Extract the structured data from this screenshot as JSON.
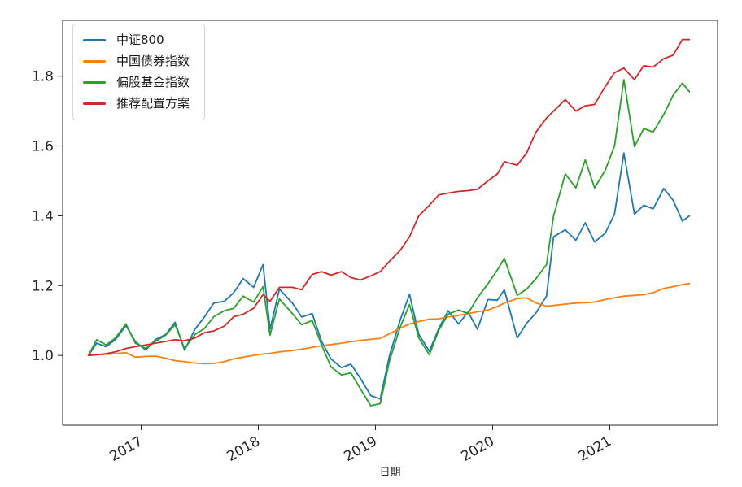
{
  "figure": {
    "background": "#ffffff"
  },
  "chart_data": {
    "type": "line",
    "title": "",
    "xlabel": "日期",
    "ylabel": "",
    "grid": false,
    "legend_position": "upper-left",
    "axis_color": "#262626",
    "tick_color": "#262626",
    "xlim": [
      2016.33,
      2021.92
    ],
    "ylim": [
      0.8,
      1.96
    ],
    "x_tick_values": [
      2017,
      2018,
      2019,
      2020,
      2021
    ],
    "x_tick_labels": [
      "2017",
      "2018",
      "2019",
      "2020",
      "2021"
    ],
    "y_tick_values": [
      1.0,
      1.2,
      1.4,
      1.6,
      1.8
    ],
    "y_tick_labels": [
      "1.0",
      "1.2",
      "1.4",
      "1.6",
      "1.8"
    ],
    "x": [
      2016.55,
      2016.62,
      2016.7,
      2016.78,
      2016.87,
      2016.95,
      2017.04,
      2017.12,
      2017.21,
      2017.29,
      2017.37,
      2017.46,
      2017.54,
      2017.62,
      2017.71,
      2017.79,
      2017.87,
      2017.96,
      2018.04,
      2018.1,
      2018.18,
      2018.29,
      2018.37,
      2018.46,
      2018.54,
      2018.62,
      2018.71,
      2018.79,
      2018.87,
      2018.96,
      2019.04,
      2019.12,
      2019.21,
      2019.29,
      2019.37,
      2019.46,
      2019.54,
      2019.62,
      2019.71,
      2019.79,
      2019.87,
      2019.96,
      2020.04,
      2020.1,
      2020.21,
      2020.29,
      2020.37,
      2020.46,
      2020.52,
      2020.62,
      2020.71,
      2020.79,
      2020.87,
      2020.96,
      2021.04,
      2021.12,
      2021.21,
      2021.29,
      2021.37,
      2021.46,
      2021.54,
      2021.62,
      2021.68
    ],
    "series": [
      {
        "key": "csi800",
        "name": "中证800",
        "color": "#1f77b4",
        "values": [
          1.0,
          1.035,
          1.025,
          1.045,
          1.085,
          1.04,
          1.015,
          1.045,
          1.06,
          1.095,
          1.015,
          1.075,
          1.11,
          1.15,
          1.155,
          1.18,
          1.22,
          1.195,
          1.26,
          1.075,
          1.19,
          1.15,
          1.11,
          1.12,
          1.04,
          0.99,
          0.965,
          0.975,
          0.935,
          0.885,
          0.875,
          1.0,
          1.1,
          1.175,
          1.06,
          1.012,
          1.077,
          1.128,
          1.09,
          1.125,
          1.075,
          1.16,
          1.158,
          1.188,
          1.05,
          1.092,
          1.122,
          1.17,
          1.34,
          1.36,
          1.33,
          1.38,
          1.325,
          1.35,
          1.405,
          1.58,
          1.405,
          1.43,
          1.42,
          1.478,
          1.445,
          1.385,
          1.4
        ]
      },
      {
        "key": "bond-index",
        "name": "中国债券指数",
        "color": "#ff7f0e",
        "values": [
          1.0,
          1.002,
          1.003,
          1.005,
          1.008,
          0.995,
          0.997,
          0.998,
          0.992,
          0.985,
          0.982,
          0.978,
          0.976,
          0.977,
          0.982,
          0.99,
          0.995,
          1.0,
          1.004,
          1.006,
          1.01,
          1.014,
          1.018,
          1.023,
          1.028,
          1.031,
          1.035,
          1.039,
          1.043,
          1.046,
          1.049,
          1.062,
          1.078,
          1.09,
          1.097,
          1.104,
          1.105,
          1.11,
          1.115,
          1.12,
          1.125,
          1.13,
          1.14,
          1.15,
          1.163,
          1.165,
          1.15,
          1.141,
          1.143,
          1.147,
          1.15,
          1.151,
          1.153,
          1.16,
          1.165,
          1.17,
          1.172,
          1.174,
          1.18,
          1.192,
          1.197,
          1.203,
          1.206
        ]
      },
      {
        "key": "equity-fund-index",
        "name": "偏股基金指数",
        "color": "#2ca02c",
        "values": [
          1.0,
          1.045,
          1.03,
          1.05,
          1.09,
          1.035,
          1.02,
          1.04,
          1.058,
          1.088,
          1.02,
          1.06,
          1.077,
          1.111,
          1.128,
          1.135,
          1.17,
          1.153,
          1.197,
          1.058,
          1.162,
          1.12,
          1.088,
          1.1,
          1.03,
          0.967,
          0.944,
          0.95,
          0.905,
          0.856,
          0.862,
          0.985,
          1.08,
          1.146,
          1.05,
          1.002,
          1.072,
          1.118,
          1.13,
          1.12,
          1.165,
          1.205,
          1.245,
          1.278,
          1.172,
          1.19,
          1.22,
          1.26,
          1.4,
          1.52,
          1.48,
          1.56,
          1.48,
          1.53,
          1.6,
          1.79,
          1.598,
          1.65,
          1.64,
          1.69,
          1.745,
          1.78,
          1.755
        ]
      },
      {
        "key": "recommended-plan",
        "name": "推荐配置方案",
        "color": "#d62728",
        "values": [
          1.0,
          1.002,
          1.005,
          1.01,
          1.02,
          1.025,
          1.03,
          1.035,
          1.04,
          1.045,
          1.042,
          1.05,
          1.065,
          1.07,
          1.084,
          1.111,
          1.118,
          1.135,
          1.174,
          1.155,
          1.195,
          1.195,
          1.188,
          1.232,
          1.24,
          1.23,
          1.24,
          1.223,
          1.216,
          1.228,
          1.24,
          1.27,
          1.3,
          1.34,
          1.4,
          1.43,
          1.46,
          1.465,
          1.47,
          1.472,
          1.476,
          1.5,
          1.52,
          1.555,
          1.545,
          1.58,
          1.64,
          1.68,
          1.7,
          1.733,
          1.7,
          1.715,
          1.719,
          1.77,
          1.81,
          1.823,
          1.79,
          1.83,
          1.826,
          1.85,
          1.86,
          1.905,
          1.905
        ]
      }
    ]
  }
}
